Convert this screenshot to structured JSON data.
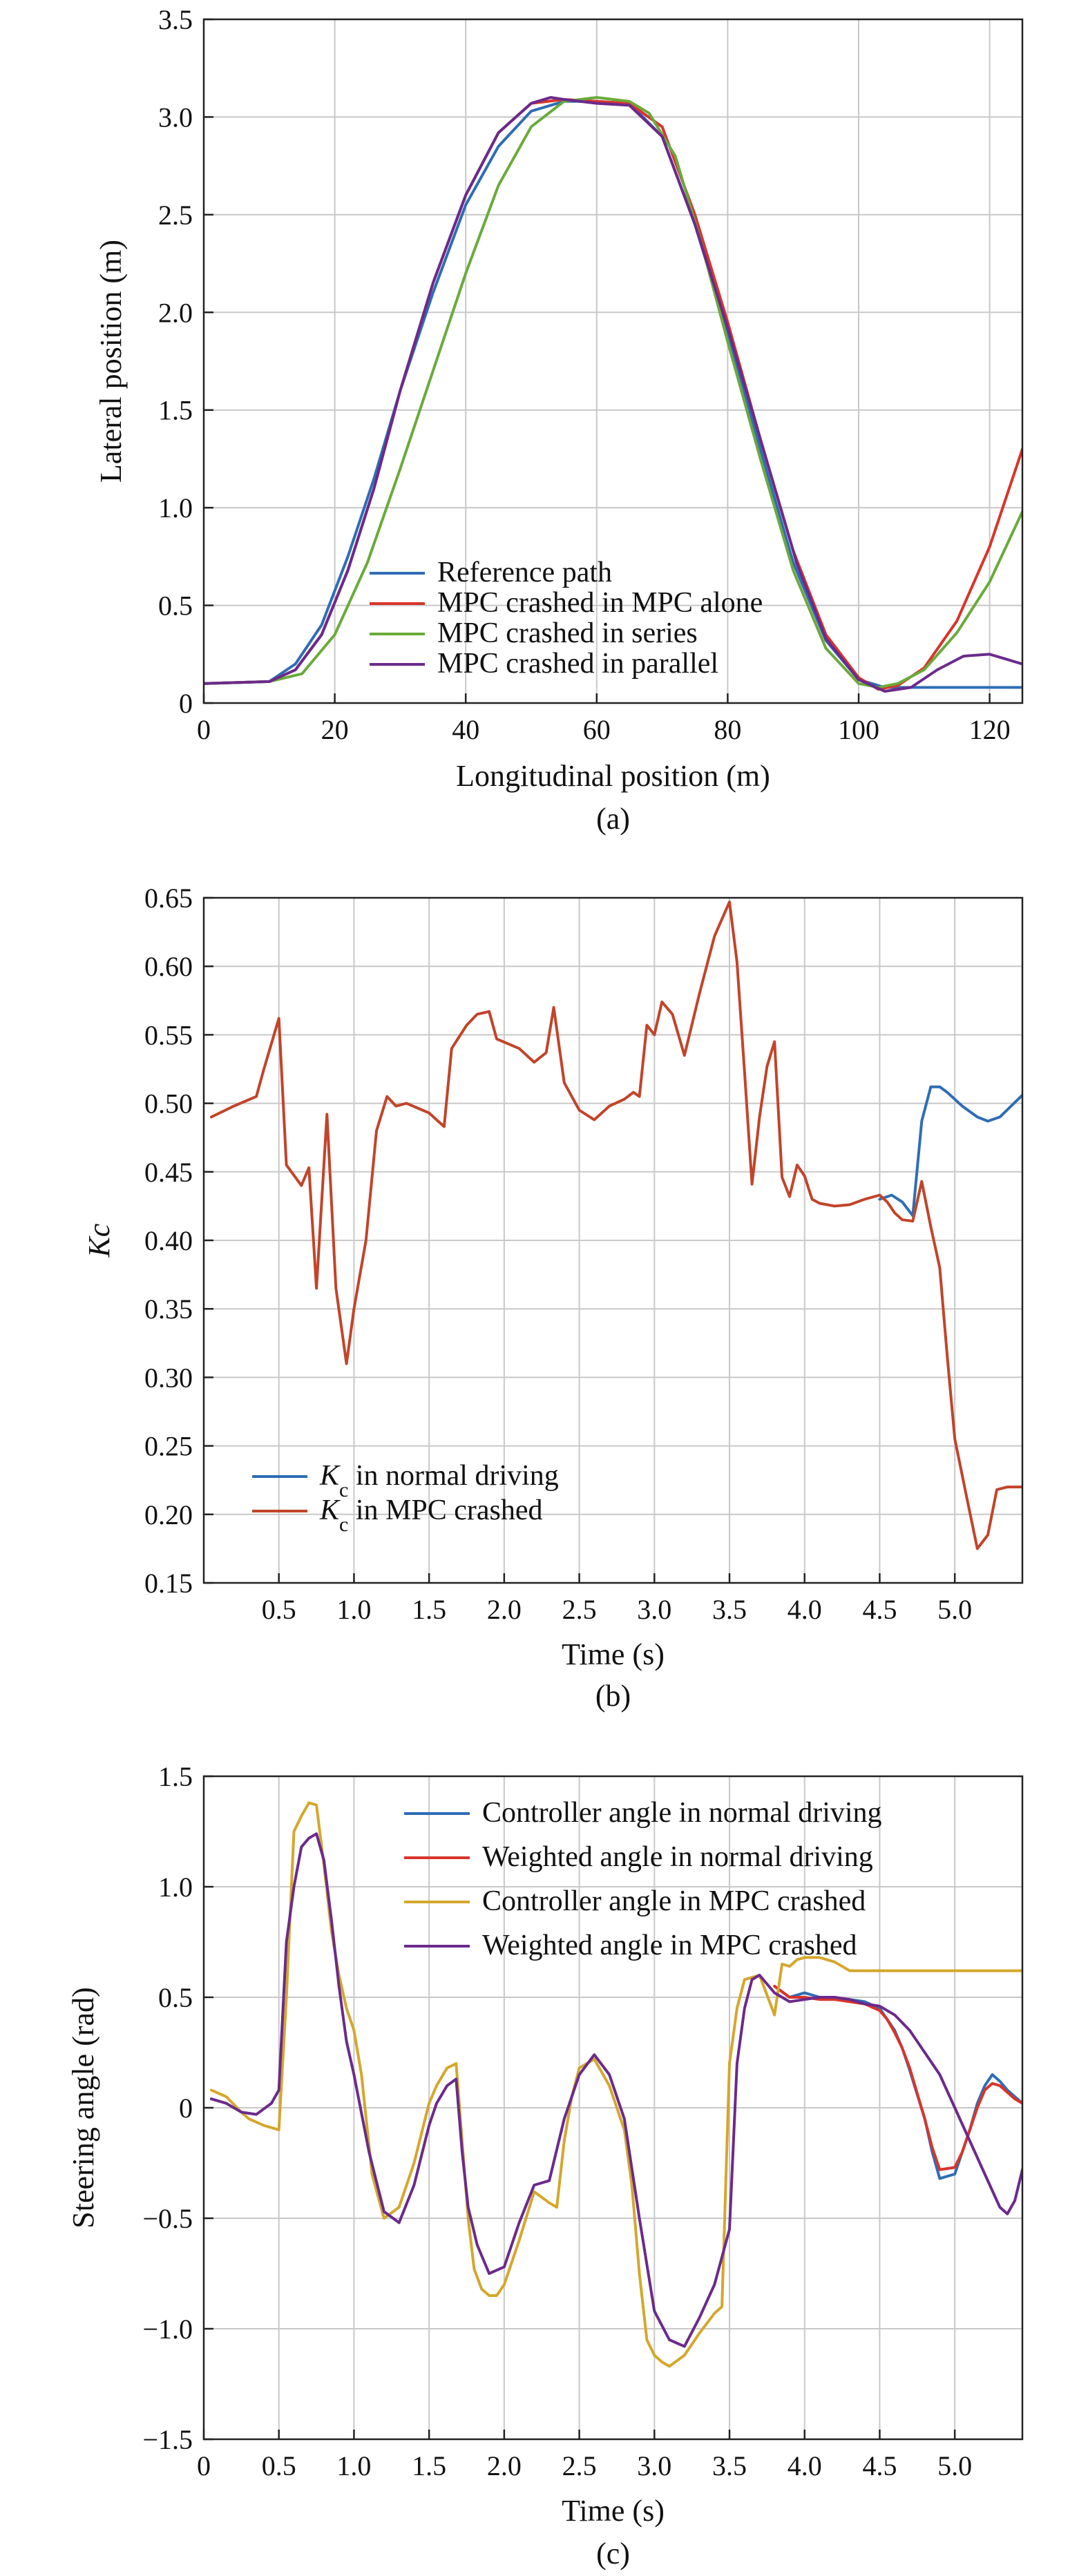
{
  "chart_data": [
    {
      "type": "line",
      "panel_label": "(a)",
      "xlabel": "Longitudinal position (m)",
      "ylabel": "Lateral position (m)",
      "xlim": [
        0,
        125
      ],
      "ylim": [
        0,
        3.5
      ],
      "xticks": [
        0,
        20,
        40,
        60,
        80,
        100,
        120
      ],
      "xtick_labels": [
        "0",
        "20",
        "40",
        "60",
        "80",
        "100",
        "120"
      ],
      "yticks": [
        0,
        0.5,
        1.0,
        1.5,
        2.0,
        2.5,
        3.0,
        3.5
      ],
      "ytick_labels": [
        "0",
        "0.5",
        "1.0",
        "1.5",
        "2.0",
        "2.5",
        "3.0",
        "3.5"
      ],
      "grid": true,
      "legend_position": "bottom-center",
      "series": [
        {
          "name": "Reference path",
          "color": "#2e6db5",
          "x": [
            0,
            10,
            14,
            18,
            22,
            26,
            30,
            35,
            40,
            45,
            50,
            55,
            60,
            65,
            70,
            75,
            80,
            85,
            90,
            95,
            100,
            104,
            108,
            112,
            118,
            125
          ],
          "y": [
            0.1,
            0.11,
            0.2,
            0.4,
            0.75,
            1.15,
            1.6,
            2.1,
            2.55,
            2.85,
            3.03,
            3.08,
            3.08,
            3.07,
            2.9,
            2.45,
            1.9,
            1.3,
            0.72,
            0.32,
            0.12,
            0.08,
            0.08,
            0.08,
            0.08,
            0.08
          ]
        },
        {
          "name": "MPC crashed in MPC alone",
          "color": "#d9342b",
          "x": [
            0,
            10,
            14,
            18,
            22,
            26,
            30,
            35,
            40,
            45,
            50,
            55,
            60,
            65,
            70,
            75,
            80,
            85,
            90,
            95,
            100,
            103,
            106,
            110,
            115,
            120,
            125
          ],
          "y": [
            0.1,
            0.11,
            0.17,
            0.35,
            0.68,
            1.1,
            1.6,
            2.15,
            2.6,
            2.92,
            3.07,
            3.09,
            3.08,
            3.07,
            2.95,
            2.5,
            1.95,
            1.35,
            0.78,
            0.35,
            0.13,
            0.07,
            0.09,
            0.18,
            0.42,
            0.8,
            1.3
          ]
        },
        {
          "name": "MPC crashed in series",
          "color": "#6aaa3a",
          "x": [
            0,
            10,
            15,
            20,
            25,
            30,
            35,
            40,
            45,
            50,
            55,
            60,
            65,
            68,
            72,
            76,
            80,
            85,
            90,
            95,
            100,
            103,
            106,
            110,
            115,
            120,
            125
          ],
          "y": [
            0.1,
            0.11,
            0.15,
            0.35,
            0.72,
            1.2,
            1.7,
            2.2,
            2.65,
            2.95,
            3.08,
            3.1,
            3.08,
            3.02,
            2.8,
            2.35,
            1.85,
            1.25,
            0.68,
            0.28,
            0.1,
            0.08,
            0.1,
            0.17,
            0.36,
            0.62,
            0.98
          ]
        },
        {
          "name": "MPC crashed in parallel",
          "color": "#6b2a8c",
          "x": [
            0,
            10,
            14,
            18,
            22,
            26,
            30,
            35,
            40,
            45,
            50,
            53,
            55,
            60,
            65,
            70,
            75,
            80,
            85,
            90,
            90.5
          ],
          "y": [
            0.1,
            0.11,
            0.17,
            0.35,
            0.68,
            1.1,
            1.6,
            2.15,
            2.6,
            2.92,
            3.07,
            3.1,
            3.09,
            3.07,
            3.06,
            2.9,
            2.45,
            1.92,
            1.35,
            0.78,
            0.72
          ]
        },
        {
          "name": "",
          "color": "#6b2a8c",
          "x": [
            90.5,
            95,
            100,
            104,
            108,
            112,
            116,
            120,
            125
          ],
          "y": [
            0.72,
            0.33,
            0.12,
            0.06,
            0.08,
            0.17,
            0.24,
            0.25,
            0.2
          ]
        }
      ]
    },
    {
      "type": "line",
      "panel_label": "(b)",
      "xlabel": "Time (s)",
      "ylabel": "Kc",
      "xlim": [
        0,
        5.45
      ],
      "ylim": [
        0.15,
        0.65
      ],
      "xticks": [
        0.5,
        1.0,
        1.5,
        2.0,
        2.5,
        3.0,
        3.5,
        4.0,
        4.5,
        5.0
      ],
      "xtick_labels": [
        "0.5",
        "1.0",
        "1.5",
        "2.0",
        "2.5",
        "3.0",
        "3.5",
        "4.0",
        "4.5",
        "5.0"
      ],
      "yticks": [
        0.15,
        0.2,
        0.25,
        0.3,
        0.35,
        0.4,
        0.45,
        0.5,
        0.55,
        0.6,
        0.65
      ],
      "ytick_labels": [
        "0.15",
        "0.20",
        "0.25",
        "0.30",
        "0.35",
        "0.40",
        "0.45",
        "0.50",
        "0.55",
        "0.60",
        "0.65"
      ],
      "grid": true,
      "legend_position": "bottom-left",
      "series": [
        {
          "name": "K",
          "name_sub": "c",
          "name_rest": " in normal driving",
          "color": "#2e6db5",
          "x": [
            4.5,
            4.58,
            4.65,
            4.72,
            4.78,
            4.84,
            4.9,
            4.95,
            5.05,
            5.15,
            5.22,
            5.3,
            5.45
          ],
          "y": [
            0.43,
            0.433,
            0.428,
            0.418,
            0.487,
            0.512,
            0.512,
            0.508,
            0.498,
            0.49,
            0.487,
            0.49,
            0.506
          ]
        },
        {
          "name": "K",
          "name_sub": "c",
          "name_rest": " in MPC crashed",
          "color": "#c2442a",
          "x": [
            0.05,
            0.2,
            0.35,
            0.4,
            0.5,
            0.55,
            0.65,
            0.7,
            0.75,
            0.82,
            0.88,
            0.95,
            1.0,
            1.08,
            1.15,
            1.22,
            1.28,
            1.35,
            1.5,
            1.6,
            1.65,
            1.75,
            1.82,
            1.9,
            1.95,
            2.1,
            2.2,
            2.28,
            2.33,
            2.4,
            2.5,
            2.6,
            2.7,
            2.8,
            2.86,
            2.9,
            2.95,
            3.0,
            3.05,
            3.12,
            3.2,
            3.3,
            3.4,
            3.5,
            3.55,
            3.6,
            3.65,
            3.7,
            3.75,
            3.8,
            3.85,
            3.9,
            3.95,
            4.0,
            4.05,
            4.1,
            4.2,
            4.3,
            4.4,
            4.5,
            4.55,
            4.6,
            4.65,
            4.72,
            4.78,
            4.84,
            4.9,
            4.95,
            5.0,
            5.08,
            5.15,
            5.22,
            5.28,
            5.35,
            5.45
          ],
          "y": [
            0.49,
            0.498,
            0.505,
            0.525,
            0.562,
            0.455,
            0.44,
            0.453,
            0.365,
            0.492,
            0.365,
            0.31,
            0.35,
            0.4,
            0.48,
            0.505,
            0.498,
            0.5,
            0.493,
            0.483,
            0.54,
            0.557,
            0.565,
            0.567,
            0.547,
            0.54,
            0.53,
            0.537,
            0.57,
            0.515,
            0.495,
            0.488,
            0.498,
            0.503,
            0.508,
            0.505,
            0.557,
            0.55,
            0.574,
            0.565,
            0.535,
            0.58,
            0.622,
            0.647,
            0.603,
            0.523,
            0.441,
            0.49,
            0.527,
            0.545,
            0.446,
            0.432,
            0.455,
            0.447,
            0.43,
            0.427,
            0.425,
            0.426,
            0.43,
            0.433,
            0.428,
            0.42,
            0.415,
            0.414,
            0.443,
            0.41,
            0.38,
            0.315,
            0.255,
            0.212,
            0.175,
            0.185,
            0.218,
            0.22,
            0.22
          ]
        }
      ]
    },
    {
      "type": "line",
      "panel_label": "(c)",
      "xlabel": "Time (s)",
      "ylabel": "Steering angle (rad)",
      "xlim": [
        0,
        5.45
      ],
      "ylim": [
        -1.5,
        1.5
      ],
      "xticks": [
        0,
        0.5,
        1.0,
        1.5,
        2.0,
        2.5,
        3.0,
        3.5,
        4.0,
        4.5,
        5.0
      ],
      "xtick_labels": [
        "0",
        "0.5",
        "1.0",
        "1.5",
        "2.0",
        "2.5",
        "3.0",
        "3.5",
        "4.0",
        "4.5",
        "5.0"
      ],
      "yticks": [
        -1.5,
        -1.0,
        -0.5,
        0,
        0.5,
        1.0,
        1.5
      ],
      "ytick_labels": [
        "−1.5",
        "−1.0",
        "−0.5",
        "0",
        "0.5",
        "1.0",
        "1.5"
      ],
      "grid": true,
      "legend_position": "top-right",
      "series": [
        {
          "name": "Controller angle in normal driving",
          "color": "#2e6db5",
          "x": [
            3.8,
            3.9,
            4.0,
            4.1,
            4.2,
            4.3,
            4.4,
            4.5,
            4.55,
            4.6,
            4.65,
            4.7,
            4.8,
            4.85,
            4.9,
            5.0,
            5.05,
            5.1,
            5.15,
            5.2,
            5.25,
            5.3,
            5.35,
            5.4,
            5.45
          ],
          "y": [
            0.55,
            0.5,
            0.52,
            0.5,
            0.49,
            0.49,
            0.48,
            0.45,
            0.4,
            0.35,
            0.27,
            0.17,
            -0.05,
            -0.2,
            -0.32,
            -0.3,
            -0.2,
            -0.1,
            0.02,
            0.1,
            0.15,
            0.12,
            0.08,
            0.05,
            0.02
          ]
        },
        {
          "name": "Weighted angle in normal driving",
          "color": "#d9342b",
          "x": [
            3.8,
            3.9,
            4.0,
            4.1,
            4.2,
            4.3,
            4.4,
            4.5,
            4.55,
            4.6,
            4.65,
            4.7,
            4.8,
            4.85,
            4.9,
            5.0,
            5.05,
            5.1,
            5.15,
            5.2,
            5.25,
            5.3,
            5.35,
            5.4,
            5.45
          ],
          "y": [
            0.55,
            0.5,
            0.5,
            0.49,
            0.49,
            0.48,
            0.47,
            0.44,
            0.4,
            0.34,
            0.27,
            0.18,
            -0.05,
            -0.18,
            -0.28,
            -0.27,
            -0.2,
            -0.1,
            0.0,
            0.08,
            0.11,
            0.1,
            0.07,
            0.04,
            0.02
          ]
        },
        {
          "name": "Controller angle in MPC crashed",
          "color": "#d4a72c",
          "x": [
            0.05,
            0.15,
            0.25,
            0.3,
            0.4,
            0.5,
            0.55,
            0.6,
            0.65,
            0.7,
            0.75,
            0.8,
            0.85,
            0.9,
            0.95,
            1.0,
            1.05,
            1.12,
            1.2,
            1.3,
            1.4,
            1.5,
            1.55,
            1.62,
            1.68,
            1.72,
            1.76,
            1.8,
            1.85,
            1.9,
            1.95,
            2.0,
            2.1,
            2.2,
            2.3,
            2.35,
            2.4,
            2.45,
            2.5,
            2.6,
            2.7,
            2.8,
            2.85,
            2.9,
            2.95,
            3.0,
            3.05,
            3.1,
            3.2,
            3.3,
            3.4,
            3.45,
            3.5,
            3.55,
            3.6,
            3.7,
            3.8,
            3.85,
            3.9,
            3.95,
            4.0,
            4.1,
            4.2,
            4.3,
            4.4,
            4.5,
            4.6,
            4.7,
            4.8,
            4.9,
            5.0,
            5.1,
            5.2,
            5.3,
            5.45
          ],
          "y": [
            0.08,
            0.05,
            -0.02,
            -0.05,
            -0.08,
            -0.1,
            0.5,
            1.25,
            1.32,
            1.38,
            1.37,
            1.1,
            0.8,
            0.6,
            0.45,
            0.35,
            0.15,
            -0.3,
            -0.5,
            -0.45,
            -0.25,
            0.02,
            0.1,
            0.18,
            0.2,
            -0.15,
            -0.5,
            -0.73,
            -0.82,
            -0.85,
            -0.85,
            -0.8,
            -0.6,
            -0.38,
            -0.43,
            -0.45,
            -0.15,
            0.05,
            0.18,
            0.22,
            0.1,
            -0.1,
            -0.35,
            -0.75,
            -1.05,
            -1.12,
            -1.15,
            -1.17,
            -1.12,
            -1.02,
            -0.93,
            -0.9,
            0.2,
            0.45,
            0.58,
            0.6,
            0.42,
            0.65,
            0.64,
            0.67,
            0.68,
            0.68,
            0.66,
            0.62,
            0.62,
            0.62,
            0.62,
            0.62,
            0.62,
            0.62,
            0.62,
            0.62,
            0.62,
            0.62,
            0.62
          ]
        },
        {
          "name": "Weighted angle in MPC crashed",
          "color": "#6b2a8c",
          "x": [
            0.05,
            0.15,
            0.25,
            0.35,
            0.45,
            0.5,
            0.55,
            0.6,
            0.65,
            0.7,
            0.75,
            0.8,
            0.85,
            0.9,
            0.95,
            1.0,
            1.1,
            1.2,
            1.3,
            1.4,
            1.5,
            1.55,
            1.62,
            1.68,
            1.72,
            1.76,
            1.82,
            1.9,
            2.0,
            2.1,
            2.2,
            2.3,
            2.4,
            2.5,
            2.6,
            2.7,
            2.8,
            2.9,
            3.0,
            3.1,
            3.2,
            3.3,
            3.4,
            3.5,
            3.55,
            3.6,
            3.65,
            3.7,
            3.8,
            3.9,
            4.0,
            4.1,
            4.2,
            4.3,
            4.4,
            4.5,
            4.6,
            4.7,
            4.8,
            4.9,
            5.0,
            5.1,
            5.2,
            5.3,
            5.35,
            5.4,
            5.45
          ],
          "y": [
            0.04,
            0.02,
            -0.02,
            -0.03,
            0.02,
            0.08,
            0.75,
            1.0,
            1.18,
            1.22,
            1.24,
            1.12,
            0.85,
            0.55,
            0.3,
            0.15,
            -0.2,
            -0.47,
            -0.52,
            -0.35,
            -0.08,
            0.02,
            0.1,
            0.13,
            -0.2,
            -0.45,
            -0.62,
            -0.75,
            -0.72,
            -0.52,
            -0.35,
            -0.33,
            -0.05,
            0.15,
            0.24,
            0.15,
            -0.05,
            -0.5,
            -0.92,
            -1.05,
            -1.08,
            -0.95,
            -0.8,
            -0.55,
            0.2,
            0.45,
            0.58,
            0.6,
            0.52,
            0.48,
            0.49,
            0.5,
            0.5,
            0.49,
            0.47,
            0.46,
            0.42,
            0.35,
            0.25,
            0.15,
            0.0,
            -0.15,
            -0.3,
            -0.45,
            -0.48,
            -0.42,
            -0.28
          ]
        }
      ]
    }
  ]
}
